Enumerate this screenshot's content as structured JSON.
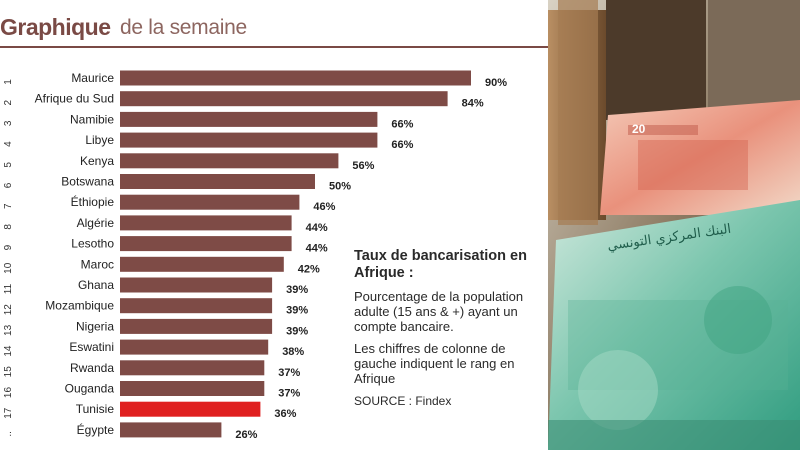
{
  "header": {
    "title_bold": "Graphique",
    "title_light": "de la semaine"
  },
  "note": {
    "title": "Taux de bancarisation en Afrique :",
    "paragraph1": "Pourcentage de la population adulte (15 ans & +) ayant un compte bancaire.",
    "paragraph2": "Les chiffres de colonne de gauche indiquent le rang en Afrique",
    "source": "SOURCE : Findex"
  },
  "colors": {
    "bar": "#7e4b46",
    "highlight": "#e02020",
    "title": "#7a4a45"
  },
  "photo": {
    "banknote_label": "20",
    "arabic_text": "البنك المركزي التونسي"
  },
  "chart_data": {
    "type": "bar",
    "orientation": "horizontal",
    "title": "",
    "xlabel": "",
    "ylabel": "",
    "xlim": [
      0,
      100
    ],
    "categories": [
      "Maurice",
      "Afrique du Sud",
      "Namibie",
      "Libye",
      "Kenya",
      "Botswana",
      "Éthiopie",
      "Algérie",
      "Lesotho",
      "Maroc",
      "Ghana",
      "Mozambique",
      "Nigeria",
      "Eswatini",
      "Rwanda",
      "Ouganda",
      "Tunisie",
      "Égypte"
    ],
    "ranks": [
      "1",
      "2",
      "3",
      "4",
      "5",
      "6",
      "7",
      "8",
      "9",
      "10",
      "11",
      "12",
      "13",
      "14",
      "15",
      "16",
      "17",
      ".."
    ],
    "values": [
      90,
      84,
      66,
      66,
      56,
      50,
      46,
      44,
      44,
      42,
      39,
      39,
      39,
      38,
      37,
      37,
      36,
      26
    ],
    "value_labels": [
      "90%",
      "84%",
      "66%",
      "66%",
      "56%",
      "50%",
      "46%",
      "44%",
      "44%",
      "42%",
      "39%",
      "39%",
      "39%",
      "38%",
      "37%",
      "37%",
      "36%",
      "26%"
    ],
    "highlight": "Tunisie",
    "grid": false,
    "legend": "none"
  }
}
